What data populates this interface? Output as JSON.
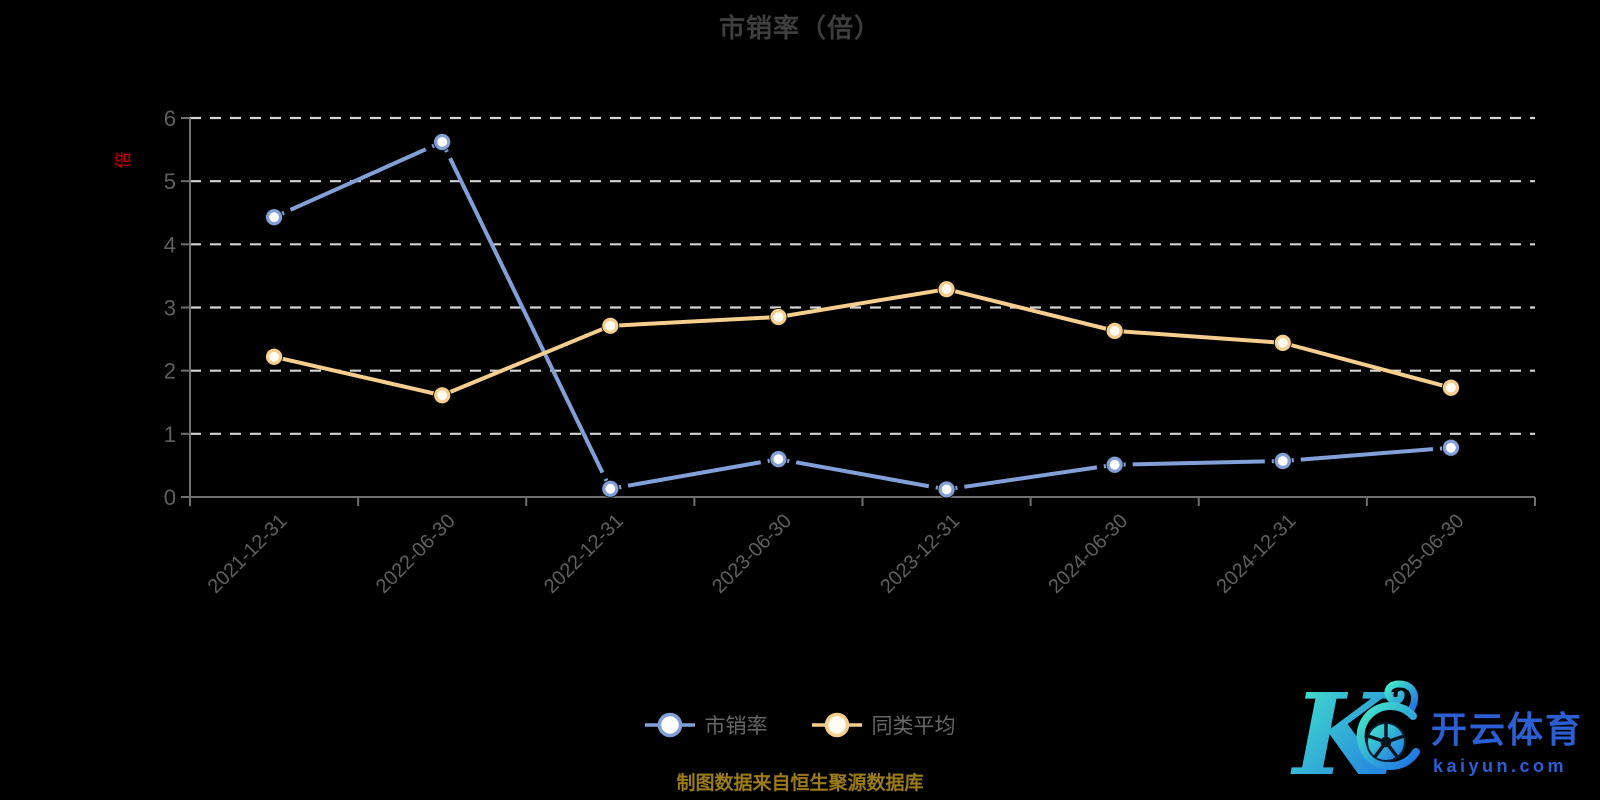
{
  "page": {
    "background": "#000000"
  },
  "chart_data": {
    "type": "line",
    "title": "市销率（倍）",
    "y_axis_name": "倍",
    "xlabel": "",
    "ylabel": "倍",
    "categories": [
      "2021-12-31",
      "2022-06-30",
      "2022-12-31",
      "2023-06-30",
      "2023-12-31",
      "2024-06-30",
      "2024-12-31",
      "2025-06-30"
    ],
    "series": [
      {
        "name": "市销率",
        "color": "#82A0D8",
        "marker": "circle-white-fill",
        "line_style": "solid-with-dashes-near-markers",
        "values": [
          4.43,
          5.62,
          0.13,
          0.6,
          0.12,
          0.51,
          0.57,
          0.78
        ]
      },
      {
        "name": "同类平均",
        "color": "#F6CE8D",
        "marker": "circle-white-fill",
        "line_style": "solid",
        "values": [
          2.22,
          1.61,
          2.71,
          2.85,
          3.29,
          2.63,
          2.44,
          1.73
        ]
      }
    ],
    "ylim": [
      0,
      6
    ],
    "y_ticks": [
      0,
      1,
      2,
      3,
      4,
      5,
      6
    ],
    "grid": "horizontal-dashed-white",
    "legend_position": "bottom-center",
    "x_label_rotation_deg": 45
  },
  "colors": {
    "background": "#000000",
    "title": "#3e3e3e",
    "axis_line": "#6f6f6f",
    "tick_label": "#5f5f5f",
    "gridline": "#d4d4d4",
    "y_axis_name": "#d40000",
    "footer": "#9a7b15",
    "brand_blue": "#2B5FD4",
    "brand_gradient_start": "#45EBC8",
    "brand_gradient_end": "#1F6FE6"
  },
  "footer": {
    "source_note": "制图数据来自恒生聚源数据库"
  },
  "watermark": {
    "brand_letter": "K",
    "brand_cn": "开云体育",
    "brand_domain": "kaiyun.com",
    "icon": "soccer-ball-icon"
  }
}
